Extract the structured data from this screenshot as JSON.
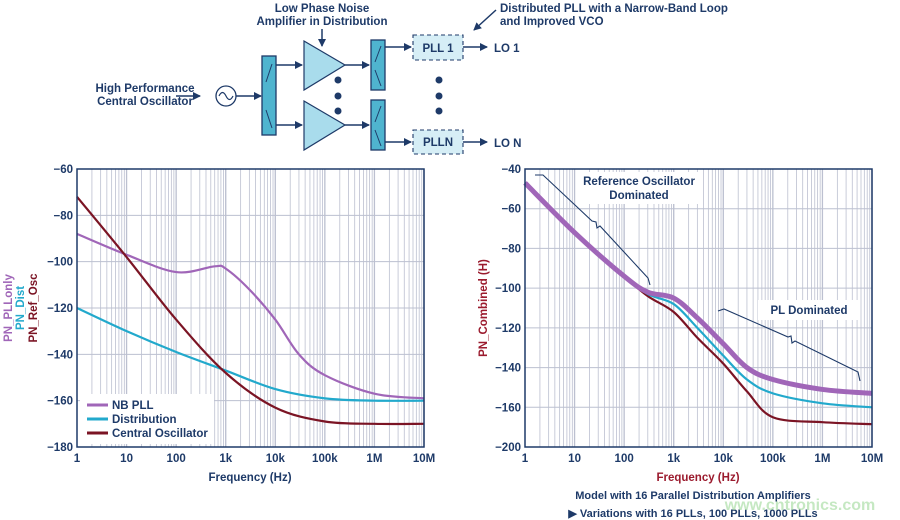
{
  "diagram": {
    "amplifier_label": [
      "Low Phase Noise",
      "Amplifier in Distribution"
    ],
    "pll_label": [
      "Distributed PLL with a Narrow-Band Loop",
      "and Improved VCO"
    ],
    "oscillator_label": [
      "High Performance",
      "Central Oscillator"
    ],
    "pll_boxes": [
      "PLL 1",
      "PLLN"
    ],
    "outputs": [
      "LO 1",
      "LO N"
    ]
  },
  "colors": {
    "purple": "#a066b8",
    "cyan": "#22a9cc",
    "darkred": "#7b1424",
    "text": "#1e3a68",
    "grid": "#bcc0d0",
    "frame": "#1e3a68",
    "box": "#4fb4cf",
    "tri": "#a9dcec"
  },
  "chart_data": [
    {
      "type": "line",
      "xlabel": "Frequency (Hz)",
      "ylabels": [
        {
          "text": "PN_PLLonly",
          "color": "purple"
        },
        {
          "text": "PN_Dist",
          "color": "cyan"
        },
        {
          "text": "PN_Ref_Osc",
          "color": "darkred"
        }
      ],
      "x_scale": "log",
      "xlim": [
        1,
        10000000
      ],
      "x_ticks": [
        "1",
        "10",
        "100",
        "1k",
        "10k",
        "100k",
        "1M",
        "10M"
      ],
      "y_ticks": [
        "-60",
        "-80",
        "-100",
        "-120",
        "-140",
        "-160",
        "-180"
      ],
      "ylim": [
        -180,
        -60
      ],
      "grid": true,
      "legend": "bottom-left",
      "series": [
        {
          "name": "NB PLL",
          "color": "purple",
          "x": [
            1,
            10,
            100,
            600,
            1000,
            3000,
            10000,
            30000,
            100000,
            1000000,
            10000000
          ],
          "y": [
            -88,
            -97,
            -104.5,
            -102,
            -103,
            -112,
            -125,
            -140,
            -149,
            -157,
            -159
          ]
        },
        {
          "name": "Distribution",
          "color": "cyan",
          "x": [
            1,
            10,
            100,
            1000,
            10000,
            100000,
            1000000,
            10000000
          ],
          "y": [
            -120,
            -130,
            -139,
            -147,
            -155,
            -159,
            -160,
            -160
          ]
        },
        {
          "name": "Central Oscillator",
          "color": "darkred",
          "x": [
            1,
            10,
            100,
            1000,
            10000,
            100000,
            1000000,
            10000000
          ],
          "y": [
            -72,
            -98,
            -125,
            -148,
            -163,
            -169,
            -170,
            -170
          ]
        }
      ]
    },
    {
      "type": "line",
      "xlabel": "Frequency (Hz)",
      "ylabel": "PN_Combined (H)",
      "x_scale": "log",
      "xlim": [
        1,
        10000000
      ],
      "x_ticks": [
        "1",
        "10",
        "100",
        "1k",
        "10k",
        "100k",
        "1M",
        "10M"
      ],
      "y_ticks": [
        "-40",
        "-60",
        "-80",
        "-100",
        "-120",
        "-140",
        "-160",
        "-200"
      ],
      "ylim": [
        -200,
        -40
      ],
      "grid": true,
      "annotations": [
        "Reference Oscillator Dominated",
        "PL Dominated"
      ],
      "caption": [
        "Model with 16 Parallel Distribution Amplifiers",
        "▶ Variations with 16 PLLs, 100 PLLs, 1000 PLLs"
      ],
      "series": [
        {
          "color": "purple",
          "x": [
            1,
            10,
            100,
            300,
            1000,
            3000,
            10000,
            30000,
            100000,
            1000000,
            10000000
          ],
          "y": [
            -47,
            -72,
            -94,
            -102,
            -105,
            -115,
            -128,
            -140,
            -146,
            -151,
            -153
          ]
        },
        {
          "color": "cyan",
          "x": [
            1,
            10,
            100,
            300,
            1000,
            3000,
            10000,
            30000,
            100000,
            1000000,
            10000000
          ],
          "y": [
            -47,
            -72,
            -94,
            -103,
            -108,
            -120,
            -134,
            -146,
            -153,
            -158,
            -160
          ]
        },
        {
          "color": "darkred",
          "x": [
            1,
            10,
            100,
            300,
            1000,
            3000,
            10000,
            30000,
            100000,
            1000000,
            10000000
          ],
          "y": [
            -47,
            -72,
            -94,
            -104,
            -112,
            -125,
            -138,
            -152,
            -170,
            -175,
            -177
          ]
        }
      ]
    }
  ],
  "watermark": "www.cntronics.com"
}
